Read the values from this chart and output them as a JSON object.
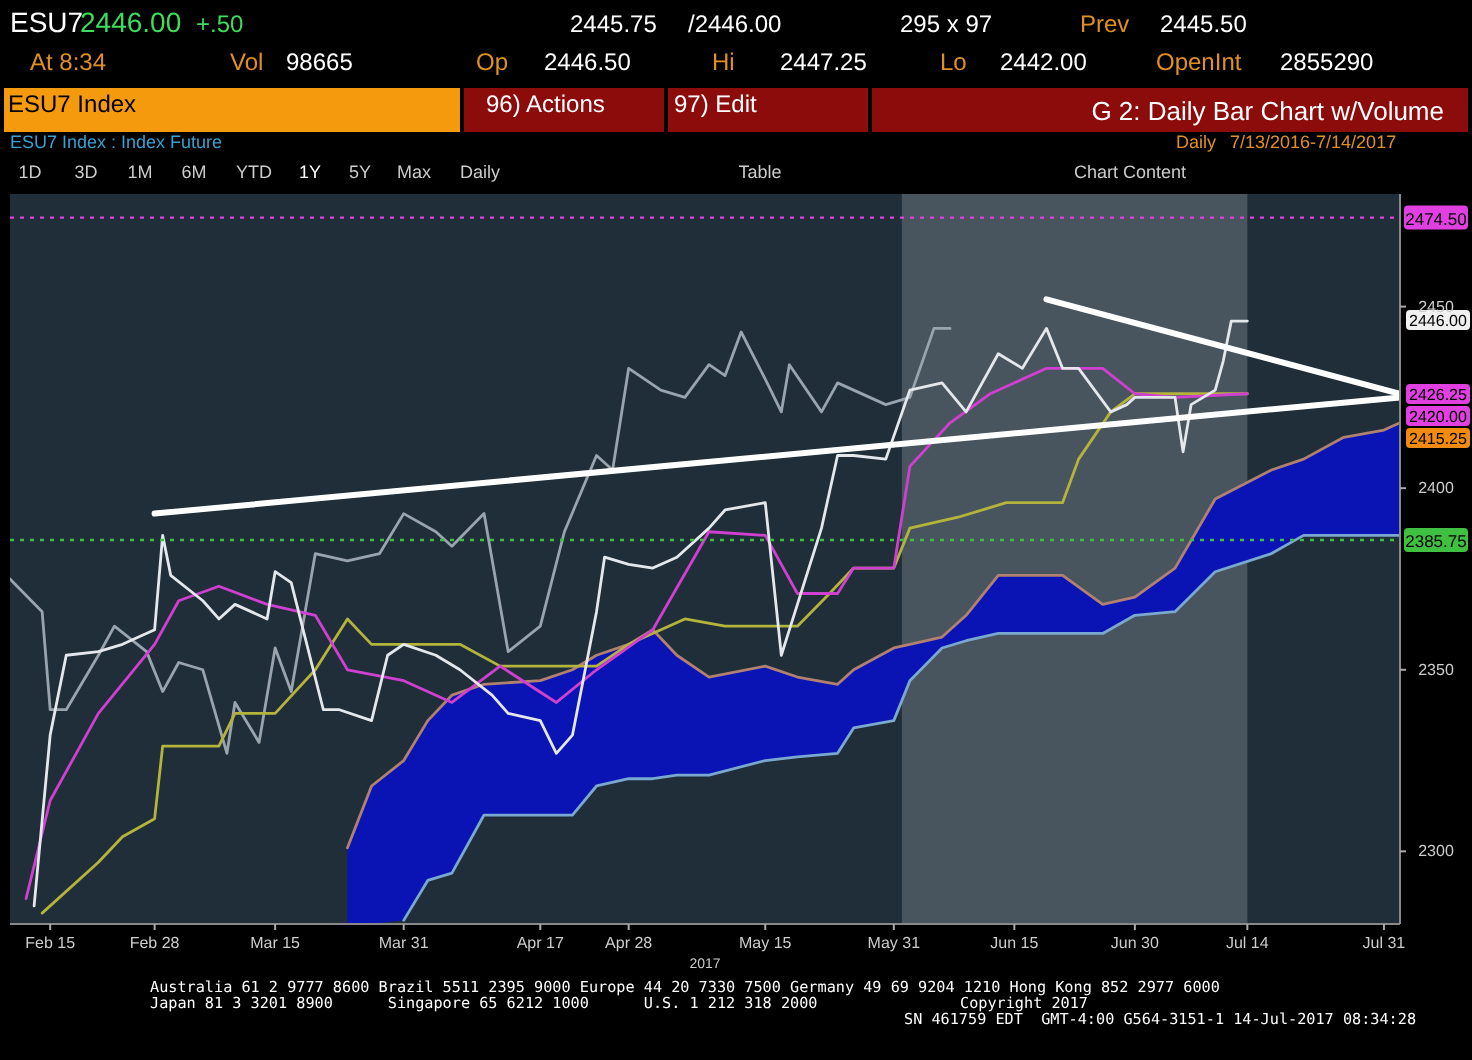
{
  "chart_data": {
    "type": "line",
    "title": "G 2: Daily Bar Chart w/Volume",
    "subtitle": "ESU7 Index : Index Future",
    "xlabel": "2017",
    "xlim": [
      "2017-02-10",
      "2017-08-02"
    ],
    "xticks": [
      {
        "value": "2017-02-15",
        "label": "Feb 15"
      },
      {
        "value": "2017-02-28",
        "label": "Feb 28"
      },
      {
        "value": "2017-03-15",
        "label": "Mar 15"
      },
      {
        "value": "2017-03-31",
        "label": "Mar 31"
      },
      {
        "value": "2017-04-17",
        "label": "Apr 17"
      },
      {
        "value": "2017-04-28",
        "label": "Apr 28"
      },
      {
        "value": "2017-05-15",
        "label": "May 15"
      },
      {
        "value": "2017-05-31",
        "label": "May 31"
      },
      {
        "value": "2017-06-15",
        "label": "Jun 15"
      },
      {
        "value": "2017-06-30",
        "label": "Jun 30"
      },
      {
        "value": "2017-07-14",
        "label": "Jul 14"
      },
      {
        "value": "2017-07-31",
        "label": "Jul 31"
      }
    ],
    "ylim": [
      2280,
      2481
    ],
    "yticks": [
      2300,
      2350,
      2400,
      2450
    ],
    "grid": false,
    "series": [
      {
        "color": "#b08070",
        "x": [
          "2017-03-24",
          "2017-03-27",
          "2017-03-31",
          "2017-04-03",
          "2017-04-06",
          "2017-04-10",
          "2017-04-17",
          "2017-04-21",
          "2017-04-24",
          "2017-04-28",
          "2017-05-01",
          "2017-05-04",
          "2017-05-08",
          "2017-05-15",
          "2017-05-19",
          "2017-05-24",
          "2017-05-26",
          "2017-05-31",
          "2017-06-02",
          "2017-06-06",
          "2017-06-09",
          "2017-06-13",
          "2017-06-21",
          "2017-06-26",
          "2017-06-30",
          "2017-07-05",
          "2017-07-10",
          "2017-07-17",
          "2017-07-21",
          "2017-07-26",
          "2017-07-31",
          "2017-08-02"
        ],
        "values": [
          2301,
          2318,
          2325,
          2336,
          2343,
          2346,
          2347,
          2350,
          2354,
          2357,
          2361,
          2354,
          2348,
          2351,
          2348,
          2346,
          2350,
          2356,
          2357,
          2359,
          2365,
          2376,
          2376,
          2368,
          2370,
          2378,
          2397,
          2405,
          2408,
          2414,
          2416,
          2418
        ]
      },
      {
        "color": "#7aa8d0",
        "x": [
          "2017-03-31",
          "2017-04-03",
          "2017-04-06",
          "2017-04-10",
          "2017-04-17",
          "2017-04-21",
          "2017-04-24",
          "2017-04-28",
          "2017-05-01",
          "2017-05-04",
          "2017-05-08",
          "2017-05-15",
          "2017-05-19",
          "2017-05-24",
          "2017-05-26",
          "2017-05-31",
          "2017-06-02",
          "2017-06-06",
          "2017-06-09",
          "2017-06-13",
          "2017-06-21",
          "2017-06-26",
          "2017-06-30",
          "2017-07-05",
          "2017-07-10",
          "2017-07-17",
          "2017-07-21",
          "2017-07-26",
          "2017-07-31",
          "2017-08-02"
        ],
        "values": [
          2281,
          2292,
          2294,
          2310,
          2310,
          2310,
          2318,
          2320,
          2320,
          2321,
          2321,
          2325,
          2326,
          2327,
          2334,
          2336,
          2347,
          2356,
          2358,
          2360,
          2360,
          2360,
          2365,
          2366,
          2377,
          2382,
          2387,
          2387,
          2387,
          2387
        ]
      },
      {
        "color": "#9aa4ae",
        "x": [
          "2017-02-10",
          "2017-02-14",
          "2017-02-15",
          "2017-02-17",
          "2017-02-21",
          "2017-02-23",
          "2017-02-27",
          "2017-03-01",
          "2017-03-03",
          "2017-03-06",
          "2017-03-09",
          "2017-03-10",
          "2017-03-13",
          "2017-03-15",
          "2017-03-17",
          "2017-03-20",
          "2017-03-24",
          "2017-03-28",
          "2017-03-31",
          "2017-04-04",
          "2017-04-06",
          "2017-04-10",
          "2017-04-13",
          "2017-04-17",
          "2017-04-20",
          "2017-04-24",
          "2017-04-26",
          "2017-04-28",
          "2017-05-02",
          "2017-05-05",
          "2017-05-08",
          "2017-05-10",
          "2017-05-12",
          "2017-05-15",
          "2017-05-17",
          "2017-05-18",
          "2017-05-22",
          "2017-05-24",
          "2017-05-30",
          "2017-06-02",
          "2017-06-05",
          "2017-06-07"
        ],
        "values": [
          2375,
          2366,
          2339,
          2339,
          2354,
          2362,
          2355,
          2344,
          2352,
          2350,
          2327,
          2341,
          2330,
          2356,
          2344,
          2382,
          2380,
          2382,
          2393,
          2388,
          2384,
          2393,
          2355,
          2362,
          2388,
          2409,
          2405,
          2433,
          2427,
          2425,
          2434,
          2431,
          2443,
          2430,
          2421,
          2434,
          2421,
          2429,
          2423,
          2425,
          2444,
          2444
        ]
      },
      {
        "color": "#b4b43c",
        "x": [
          "2017-02-14",
          "2017-02-21",
          "2017-02-24",
          "2017-02-28",
          "2017-03-01",
          "2017-03-08",
          "2017-03-10",
          "2017-03-15",
          "2017-03-20",
          "2017-03-24",
          "2017-03-27",
          "2017-04-07",
          "2017-04-12",
          "2017-04-24",
          "2017-04-28",
          "2017-05-05",
          "2017-05-10",
          "2017-05-19",
          "2017-05-23",
          "2017-05-26",
          "2017-05-31",
          "2017-06-02",
          "2017-06-08",
          "2017-06-14",
          "2017-06-21",
          "2017-06-23",
          "2017-06-27",
          "2017-06-30",
          "2017-07-06",
          "2017-07-14"
        ],
        "values": [
          2283,
          2297,
          2304,
          2309,
          2329,
          2329,
          2338,
          2338,
          2350,
          2364,
          2357,
          2357,
          2351,
          2351,
          2357,
          2364,
          2362,
          2362,
          2371,
          2378,
          2378,
          2389,
          2392,
          2396,
          2396,
          2408,
          2421,
          2426,
          2426,
          2426
        ]
      },
      {
        "color": "#d040d0",
        "x": [
          "2017-02-12",
          "2017-02-15",
          "2017-02-21",
          "2017-02-28",
          "2017-03-03",
          "2017-03-08",
          "2017-03-14",
          "2017-03-20",
          "2017-03-24",
          "2017-03-31",
          "2017-04-06",
          "2017-04-12",
          "2017-04-19",
          "2017-04-24",
          "2017-05-01",
          "2017-05-08",
          "2017-05-15",
          "2017-05-19",
          "2017-05-24",
          "2017-05-26",
          "2017-05-31",
          "2017-06-02",
          "2017-06-07",
          "2017-06-12",
          "2017-06-19",
          "2017-06-26",
          "2017-06-30",
          "2017-07-05",
          "2017-07-14"
        ],
        "values": [
          2287,
          2314,
          2338,
          2357,
          2369,
          2373,
          2368,
          2365,
          2350,
          2347,
          2341,
          2351,
          2341,
          2350,
          2361,
          2388,
          2387,
          2371,
          2371,
          2378,
          2378,
          2406,
          2418,
          2426,
          2433,
          2433,
          2426,
          2425,
          2426
        ]
      },
      {
        "color": "#e4e8ec",
        "x": [
          "2017-02-13",
          "2017-02-15",
          "2017-02-17",
          "2017-02-21",
          "2017-02-24",
          "2017-02-28",
          "2017-03-01",
          "2017-03-02",
          "2017-03-06",
          "2017-03-08",
          "2017-03-10",
          "2017-03-14",
          "2017-03-15",
          "2017-03-17",
          "2017-03-21",
          "2017-03-23",
          "2017-03-27",
          "2017-03-29",
          "2017-03-31",
          "2017-04-04",
          "2017-04-07",
          "2017-04-11",
          "2017-04-13",
          "2017-04-17",
          "2017-04-19",
          "2017-04-21",
          "2017-04-24",
          "2017-04-25",
          "2017-04-28",
          "2017-05-01",
          "2017-05-04",
          "2017-05-08",
          "2017-05-10",
          "2017-05-15",
          "2017-05-17",
          "2017-05-18",
          "2017-05-22",
          "2017-05-24",
          "2017-05-26",
          "2017-05-30",
          "2017-06-02",
          "2017-06-06",
          "2017-06-09",
          "2017-06-13",
          "2017-06-16",
          "2017-06-19",
          "2017-06-21",
          "2017-06-23",
          "2017-06-27",
          "2017-06-29",
          "2017-06-30",
          "2017-07-05",
          "2017-07-06",
          "2017-07-07",
          "2017-07-10",
          "2017-07-11",
          "2017-07-12",
          "2017-07-14"
        ],
        "values": [
          2285,
          2332,
          2354,
          2355,
          2357,
          2361,
          2387,
          2376,
          2369,
          2364,
          2368,
          2364,
          2377,
          2374,
          2339,
          2339,
          2336,
          2354,
          2357,
          2354,
          2350,
          2343,
          2338,
          2336,
          2327,
          2332,
          2366,
          2381,
          2379,
          2378,
          2381,
          2389,
          2394,
          2396,
          2354,
          2361,
          2389,
          2409,
          2409,
          2408,
          2427,
          2429,
          2421,
          2437,
          2433,
          2444,
          2433,
          2433,
          2421,
          2423,
          2425,
          2425,
          2410,
          2423,
          2427,
          2435,
          2446,
          2446
        ]
      },
      {
        "color": "#ffffff",
        "x": [
          "2017-02-28",
          "2017-08-02"
        ],
        "values": [
          2393,
          2425
        ]
      },
      {
        "color": "#ffffff",
        "x": [
          "2017-06-19",
          "2017-08-02"
        ],
        "values": [
          2452,
          2426
        ]
      }
    ],
    "bands": [
      {
        "axis": "x",
        "from": "2017-06-01",
        "to": "2017-07-14",
        "color": "#c8ccd0"
      }
    ],
    "ref_lines": [
      {
        "axis": "y",
        "value": 2474.5,
        "label": "2474.50",
        "color": "#e040e0",
        "line_style": "dotted"
      },
      {
        "axis": "y",
        "value": 2385.75,
        "label": "2385.75",
        "color": "#40c040",
        "line_style": "dotted"
      }
    ],
    "annotations": [
      "2446.00",
      "2426.25",
      "2420.00",
      "2415.25",
      "ESU7",
      "2446.00",
      "+.50",
      "2445.75",
      "/2446.00",
      "295 x 97",
      "Prev",
      "2445.50",
      "At 8:34",
      "Vol",
      "98665",
      "Op",
      "2446.50",
      "Hi",
      "2447.25",
      "Lo",
      "2442.00",
      "OpenInt",
      "2855290",
      "ESU7 Index",
      "96) Actions",
      "97) Edit",
      "Daily",
      "7/13/2016-7/14/2017",
      "1D",
      "3D",
      "1M",
      "6M",
      "YTD",
      "1Y",
      "5Y",
      "Max",
      "Daily",
      "Table",
      "Chart Content",
      "Australia 61 2 9777 8600 Brazil 5511 2395 9000 Europe 44 20 7330 7500 Germany 49 69 9204 1210 Hong Kong 852 2977 6000",
      "Japan 81 3 3201 8900      Singapore 65 6212 1000      U.S. 1 212 318 2000",
      "Copyright 2017",
      "SN 461759 EDT  GMT-4:00 G564-3151-1 14-Jul-2017 08:34:28"
    ]
  }
}
